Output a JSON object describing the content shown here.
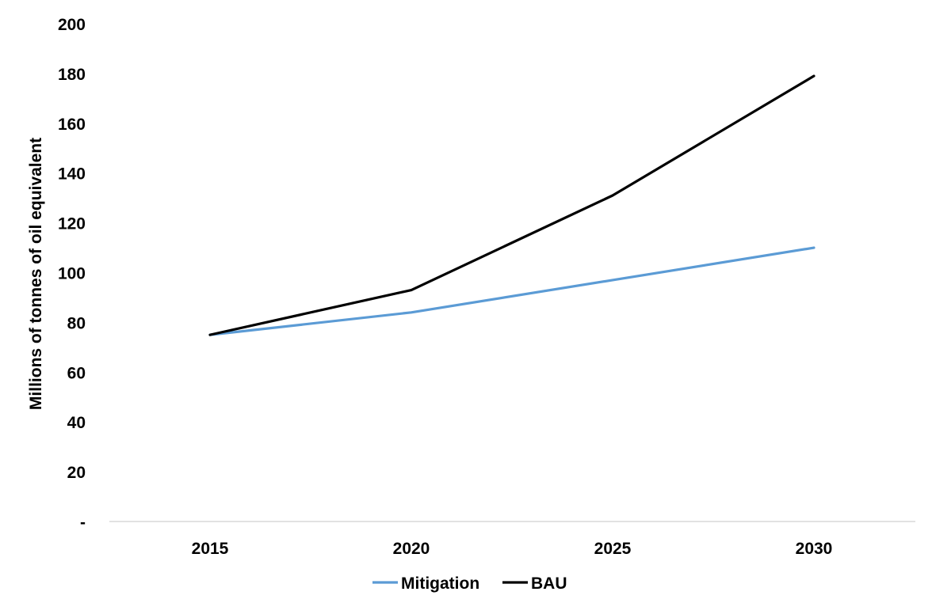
{
  "chart_data": {
    "type": "line",
    "title": "",
    "xlabel": "",
    "ylabel": "Millions of tonnes of oil equivalent",
    "x": [
      "2015",
      "2020",
      "2025",
      "2030"
    ],
    "ylim": [
      0,
      200
    ],
    "yticks": [
      0,
      20,
      40,
      60,
      80,
      100,
      120,
      140,
      160,
      180,
      200
    ],
    "ytick_labels": [
      "-",
      "20",
      "40",
      "60",
      "80",
      "100",
      "120",
      "140",
      "160",
      "180",
      "200"
    ],
    "grid": false,
    "legend_position": "bottom",
    "series": [
      {
        "name": "Mitigation",
        "color": "#5b9bd5",
        "values": [
          75,
          84,
          97,
          110
        ]
      },
      {
        "name": "BAU",
        "color": "#000000",
        "values": [
          75,
          93,
          131,
          179
        ]
      }
    ]
  }
}
